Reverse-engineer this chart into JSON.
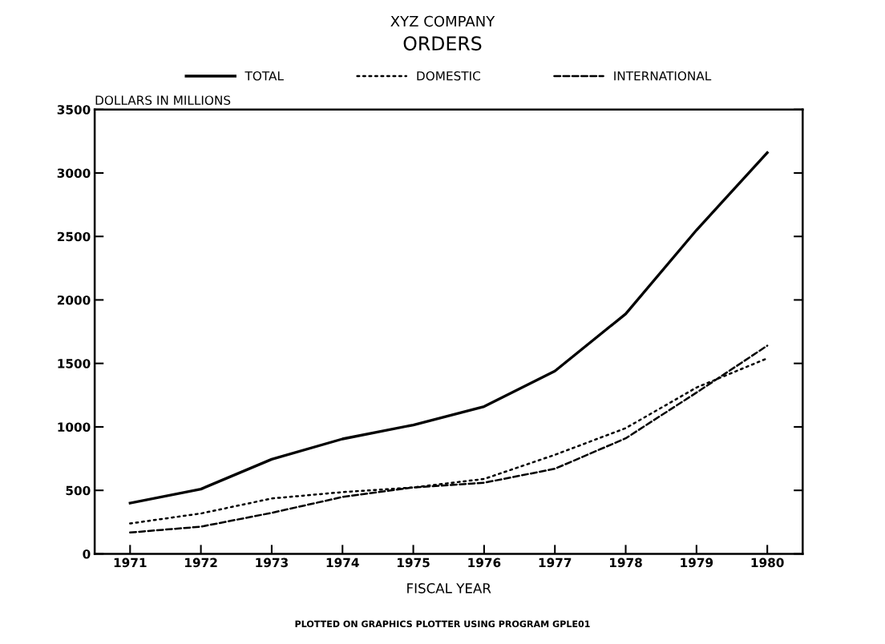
{
  "chart_data": {
    "type": "line",
    "title": "XYZ COMPANY",
    "subtitle": "ORDERS",
    "xlabel": "FISCAL YEAR",
    "ylabel": "DOLLARS IN MILLIONS",
    "categories": [
      "1971",
      "1972",
      "1973",
      "1974",
      "1975",
      "1976",
      "1977",
      "1978",
      "1979",
      "1980"
    ],
    "series": [
      {
        "name": "TOTAL",
        "color": "#000000",
        "line_style": "solid",
        "values": [
          400,
          510,
          745,
          905,
          1015,
          1160,
          1440,
          1890,
          2550,
          3160
        ]
      },
      {
        "name": "DOMESTIC",
        "color": "#000000",
        "line_style": "dotted",
        "values": [
          239,
          318,
          436,
          486,
          523,
          590,
          780,
          990,
          1310,
          1540
        ]
      },
      {
        "name": "INTERNATIONAL",
        "color": "#000000",
        "line_style": "dashed",
        "values": [
          168,
          214,
          323,
          448,
          523,
          560,
          670,
          910,
          1270,
          1640
        ]
      }
    ],
    "ylim": [
      0,
      3500
    ],
    "yticks": [
      0,
      500,
      1000,
      1500,
      2000,
      2500,
      3000,
      3500
    ],
    "grid": false,
    "legend": "top",
    "marker": "none",
    "annotations": [
      "PLOTTED ON GRAPHICS PLOTTER USING PROGRAM GPLE01"
    ]
  }
}
